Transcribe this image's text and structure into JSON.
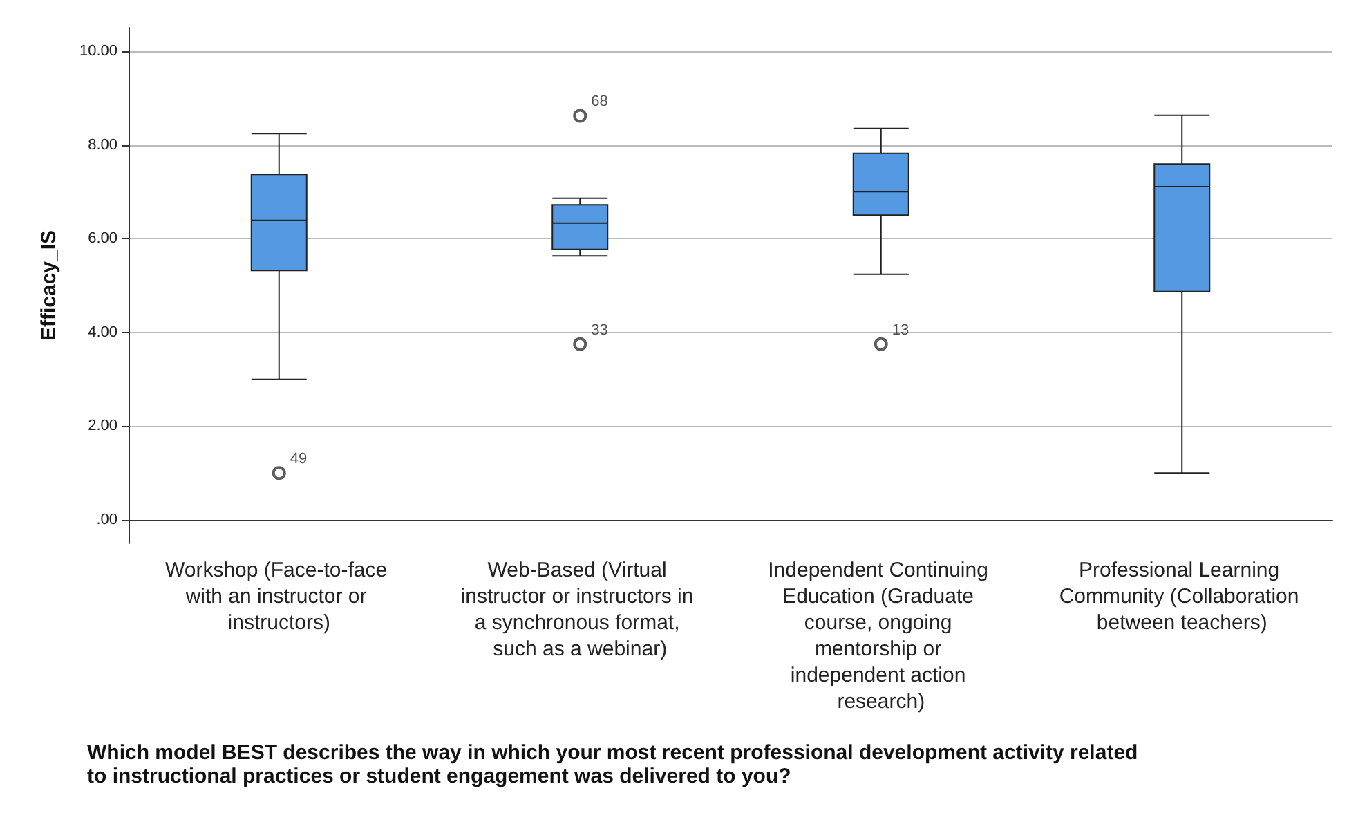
{
  "chart_data": {
    "type": "box",
    "xlabel": "Which model BEST describes the way in which your most recent professional development activity related to instructional practices or student engagement was delivered to you?",
    "ylabel": "Efficacy_IS",
    "categories": [
      "Workshop (Face-to-face with an instructor or instructors)",
      "Web-Based (Virtual instructor or instructors in a synchronous format, such as a webinar)",
      "Independent Continuing Education (Graduate course, ongoing mentorship or independent action research)",
      "Professional Learning Community (Collaboration between teachers)"
    ],
    "color": "#5599e2",
    "boxes": [
      {
        "low": 3.0,
        "q1": 5.32,
        "median": 6.39,
        "q3": 7.37,
        "high": 8.24,
        "outliers": [
          1.0
        ]
      },
      {
        "low": 5.63,
        "q1": 5.77,
        "median": 6.33,
        "q3": 6.72,
        "high": 6.86,
        "outliers": [
          8.62,
          3.75
        ]
      },
      {
        "low": 5.24,
        "q1": 6.5,
        "median": 7.0,
        "q3": 7.82,
        "high": 8.35,
        "outliers": [
          3.75
        ]
      },
      {
        "low": 1.0,
        "q1": 4.87,
        "median": 7.11,
        "q3": 7.59,
        "high": 8.63
      }
    ],
    "annotations": [
      "49",
      "68",
      "33",
      "13"
    ],
    "ylim": [
      -0.5,
      10.5
    ],
    "yticks": [
      {
        "value": 0,
        "label": ".00"
      },
      {
        "value": 2,
        "label": "2.00"
      },
      {
        "value": 4,
        "label": "4.00"
      },
      {
        "value": 6,
        "label": "6.00"
      },
      {
        "value": 8,
        "label": "8.00"
      },
      {
        "value": 10,
        "label": "10.00"
      }
    ],
    "grid": "y",
    "marker": "circle"
  }
}
